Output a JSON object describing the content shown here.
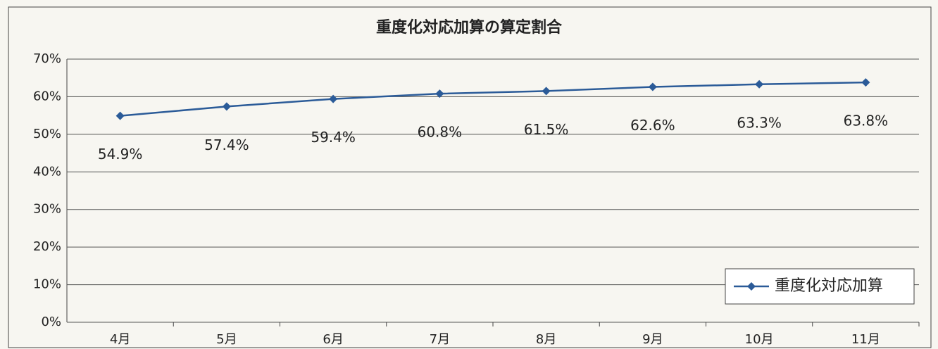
{
  "chart_data": {
    "type": "line",
    "title": "重度化対応加算の算定割合",
    "categories": [
      "4月",
      "5月",
      "6月",
      "7月",
      "8月",
      "9月",
      "10月",
      "11月"
    ],
    "series": [
      {
        "name": "重度化対応加算",
        "color": "#2b5b98",
        "values": [
          54.9,
          57.4,
          59.4,
          60.8,
          61.5,
          62.6,
          63.3,
          63.8
        ],
        "value_labels": [
          "54.9%",
          "57.4%",
          "59.4%",
          "60.8%",
          "61.5%",
          "62.6%",
          "63.3%",
          "63.8%"
        ]
      }
    ],
    "ylim": [
      0,
      70
    ],
    "yticks": [
      {
        "value": 0,
        "label": "0%"
      },
      {
        "value": 10,
        "label": "10%"
      },
      {
        "value": 20,
        "label": "20%"
      },
      {
        "value": 30,
        "label": "30%"
      },
      {
        "value": 40,
        "label": "40%"
      },
      {
        "value": 50,
        "label": "50%"
      },
      {
        "value": 60,
        "label": "60%"
      },
      {
        "value": 70,
        "label": "70%"
      }
    ],
    "grid": true,
    "legend": "lower right"
  }
}
